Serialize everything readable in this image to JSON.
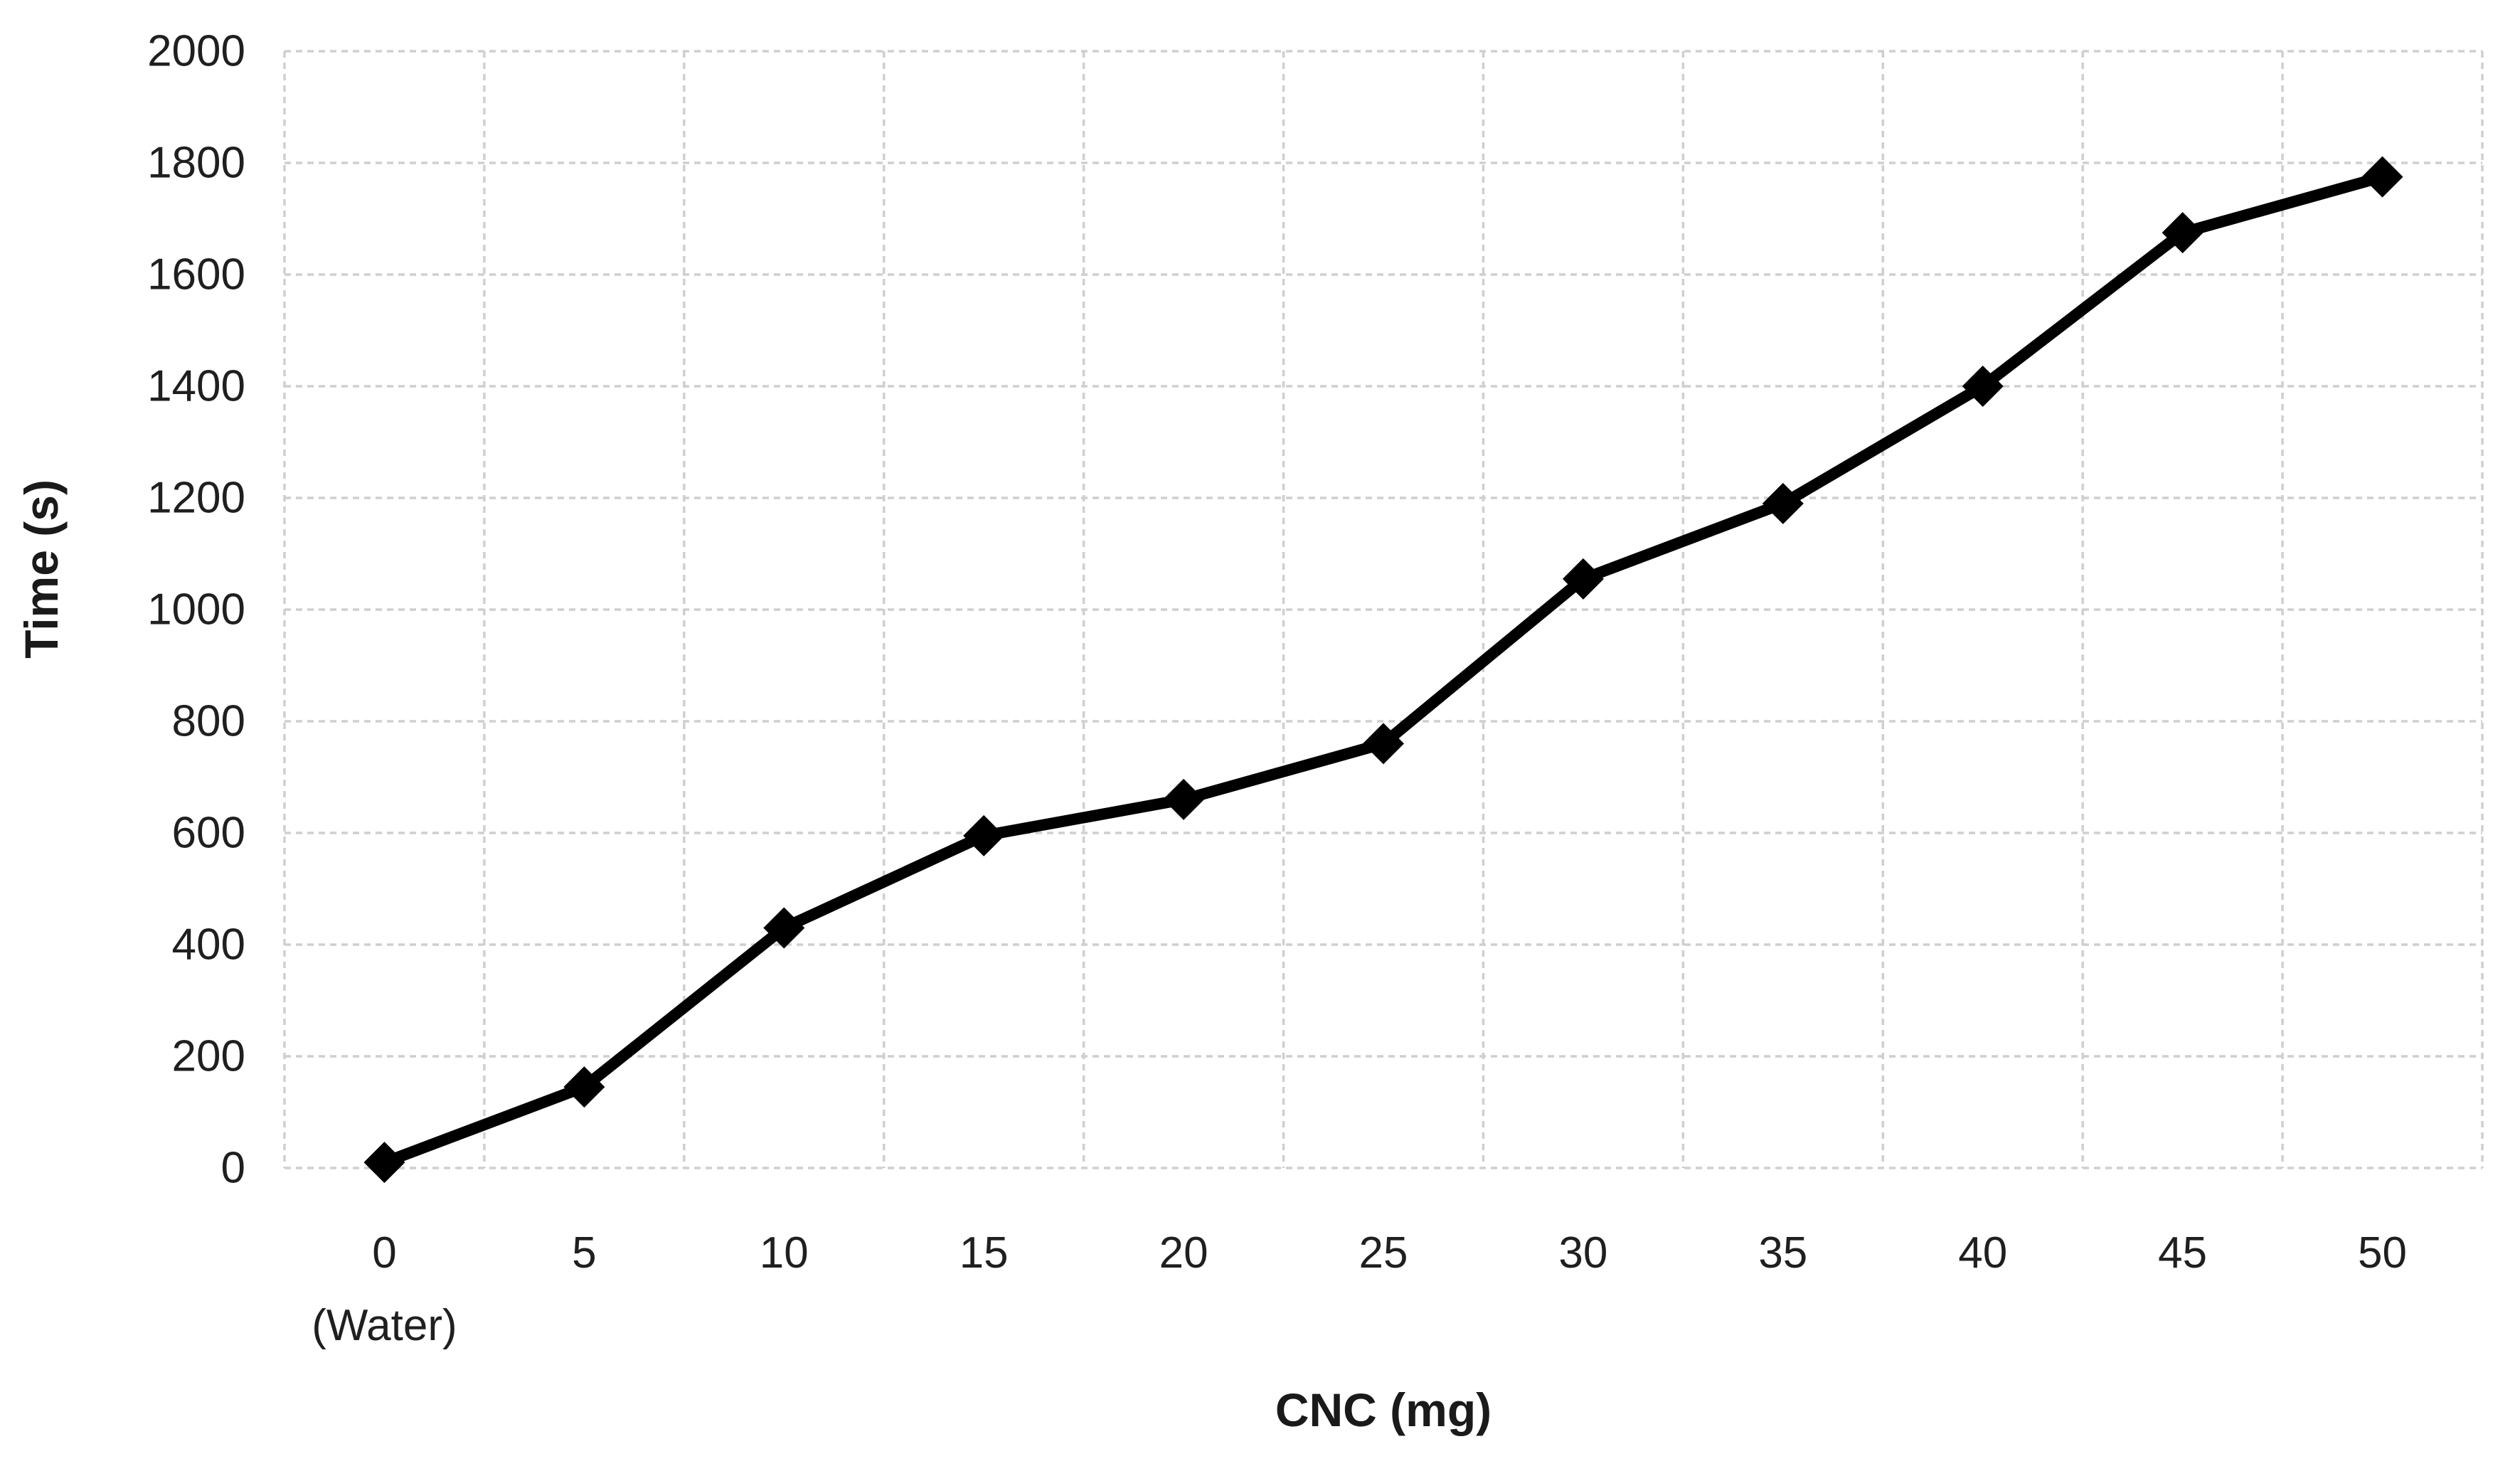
{
  "chart_data": {
    "type": "line",
    "title": "",
    "xlabel": "CNC (mg)",
    "ylabel": "Time (s)",
    "x": [
      0,
      5,
      10,
      15,
      20,
      25,
      30,
      35,
      40,
      45,
      50
    ],
    "x_tick_labels": [
      "0",
      "5",
      "10",
      "15",
      "20",
      "25",
      "30",
      "35",
      "40",
      "45",
      "50"
    ],
    "x_first_tick_sublabel": "(Water)",
    "series": [
      {
        "name": "Time (s)",
        "values": [
          10,
          145,
          430,
          595,
          660,
          760,
          1055,
          1190,
          1400,
          1675,
          1775
        ],
        "color": "#000000",
        "marker": "diamond"
      }
    ],
    "ylim": [
      0,
      2000
    ],
    "ytick_step": 200,
    "ytick_labels": [
      "0",
      "200",
      "400",
      "600",
      "800",
      "1000",
      "1200",
      "1400",
      "1600",
      "1800",
      "2000"
    ],
    "grid": true,
    "gridline_color": "#cfcfcf",
    "axis_text_color": "#1f1f1f",
    "plot_background": "#ffffff",
    "legend_position": "none"
  }
}
